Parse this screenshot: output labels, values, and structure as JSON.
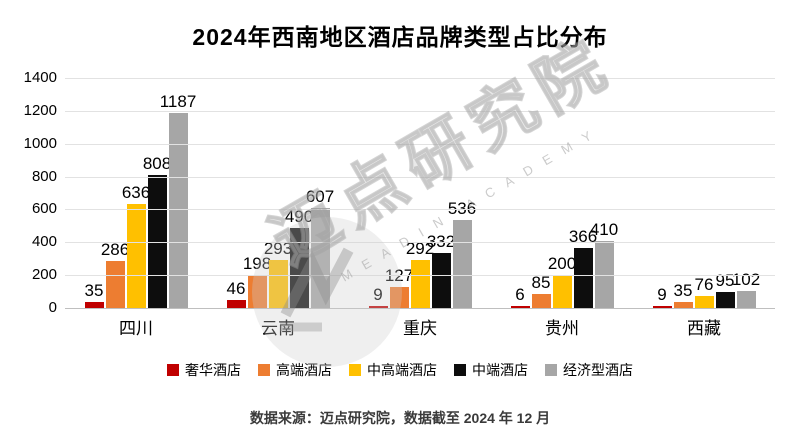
{
  "title": "2024年西南地区酒店品牌类型占比分布",
  "source_note": "数据来源：迈点研究院，数据截至 2024 年 12 月",
  "watermark": {
    "cn": "迈点研究院",
    "en": "MEADIN ACADEMY"
  },
  "colors": {
    "luxury": "#C00000",
    "highend": "#ED7D31",
    "midhigh": "#FFC000",
    "mid": "#0D0D0D",
    "economy": "#A6A6A6",
    "gridline": "#E2E2E2"
  },
  "chart_data": {
    "type": "bar",
    "categories": [
      "四川",
      "云南",
      "重庆",
      "贵州",
      "西藏"
    ],
    "series": [
      {
        "name": "奢华酒店",
        "color": "#C00000",
        "values": [
          35,
          46,
          9,
          6,
          9
        ]
      },
      {
        "name": "高端酒店",
        "color": "#ED7D31",
        "values": [
          286,
          198,
          127,
          85,
          35
        ]
      },
      {
        "name": "中高端酒店",
        "color": "#FFC000",
        "values": [
          636,
          293,
          292,
          200,
          76
        ]
      },
      {
        "name": "中端酒店",
        "color": "#0D0D0D",
        "values": [
          808,
          490,
          332,
          366,
          95
        ]
      },
      {
        "name": "经济型酒店",
        "color": "#A6A6A6",
        "values": [
          1187,
          607,
          536,
          410,
          102
        ]
      }
    ],
    "title": "2024年西南地区酒店品牌类型占比分布",
    "xlabel": "",
    "ylabel": "",
    "ylim": [
      0,
      1400
    ],
    "ytick_step": 200,
    "grid": true,
    "legend_position": "bottom",
    "data_labels": true
  }
}
